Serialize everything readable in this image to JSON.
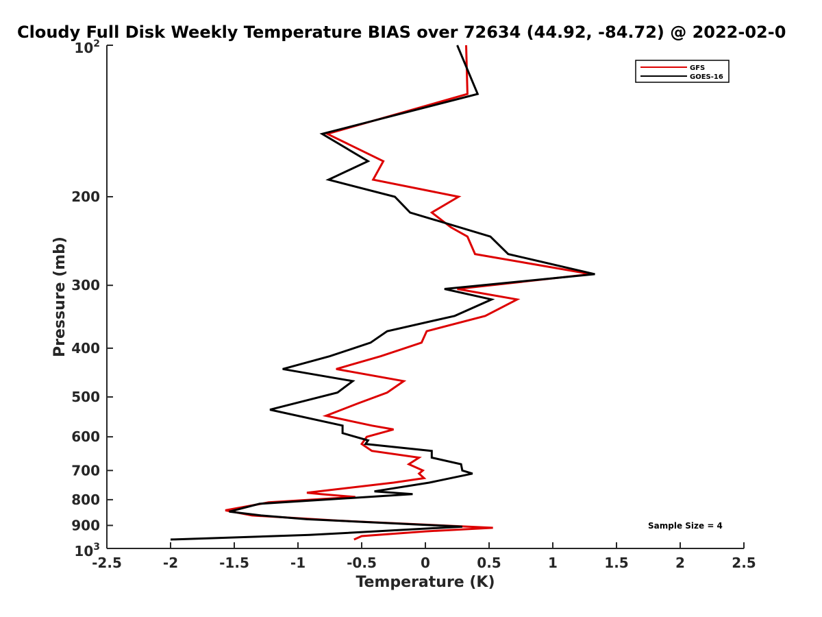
{
  "chart_data": {
    "type": "line",
    "title": "Cloudy Full Disk Weekly Temperature BIAS over 72634 (44.92, -84.72) @ 2022-02-0",
    "xlabel": "Temperature (K)",
    "ylabel": "Pressure (mb)",
    "xlim": [
      -2.5,
      2.5
    ],
    "ylim": [
      100,
      1000
    ],
    "y_scale": "log",
    "y_reversed": true,
    "grid": false,
    "legend_position": "top-right",
    "x_ticks": [
      "-2.5",
      "-2",
      "-1.5",
      "-1",
      "-0.5",
      "0",
      "0.5",
      "1",
      "1.5",
      "2",
      "2.5"
    ],
    "x_tick_values": [
      -2.5,
      -2,
      -1.5,
      -1,
      -0.5,
      0,
      0.5,
      1,
      1.5,
      2,
      2.5
    ],
    "y_ticks": [
      {
        "value": 100,
        "base": "10",
        "exp": "2"
      },
      {
        "value": 200,
        "label": "200"
      },
      {
        "value": 300,
        "label": "300"
      },
      {
        "value": 400,
        "label": "400"
      },
      {
        "value": 500,
        "label": "500"
      },
      {
        "value": 600,
        "label": "600"
      },
      {
        "value": 700,
        "label": "700"
      },
      {
        "value": 800,
        "label": "800"
      },
      {
        "value": 900,
        "label": "900"
      },
      {
        "value": 1000,
        "base": "10",
        "exp": "3"
      }
    ],
    "series": [
      {
        "name": "GFS",
        "color": "#dd0000",
        "points": [
          [
            0.32,
            100
          ],
          [
            0.33,
            125
          ],
          [
            -0.77,
            150
          ],
          [
            -0.33,
            170
          ],
          [
            -0.41,
            185
          ],
          [
            0.26,
            200
          ],
          [
            0.05,
            215
          ],
          [
            0.2,
            230
          ],
          [
            0.33,
            240
          ],
          [
            0.39,
            260
          ],
          [
            1.3,
            285
          ],
          [
            0.25,
            305
          ],
          [
            0.72,
            320
          ],
          [
            0.47,
            345
          ],
          [
            0.01,
            370
          ],
          [
            -0.03,
            390
          ],
          [
            -0.35,
            415
          ],
          [
            -0.7,
            440
          ],
          [
            -0.17,
            465
          ],
          [
            -0.3,
            490
          ],
          [
            -0.53,
            515
          ],
          [
            -0.78,
            545
          ],
          [
            -0.42,
            570
          ],
          [
            -0.25,
            580
          ],
          [
            -0.46,
            600
          ],
          [
            -0.5,
            620
          ],
          [
            -0.42,
            640
          ],
          [
            -0.05,
            660
          ],
          [
            -0.13,
            680
          ],
          [
            -0.02,
            700
          ],
          [
            -0.05,
            710
          ],
          [
            -0.01,
            725
          ],
          [
            -0.25,
            740
          ],
          [
            -0.93,
            775
          ],
          [
            -0.82,
            780
          ],
          [
            -0.55,
            790
          ],
          [
            -1.23,
            810
          ],
          [
            -1.57,
            840
          ],
          [
            -1.36,
            860
          ],
          [
            -0.7,
            880
          ],
          [
            0.53,
            910
          ],
          [
            0.0,
            925
          ],
          [
            -0.5,
            945
          ],
          [
            -0.56,
            960
          ]
        ]
      },
      {
        "name": "GOES-16",
        "color": "#000000",
        "points": [
          [
            0.25,
            100
          ],
          [
            0.41,
            125
          ],
          [
            -0.81,
            150
          ],
          [
            -0.45,
            170
          ],
          [
            -0.76,
            185
          ],
          [
            -0.24,
            200
          ],
          [
            -0.12,
            215
          ],
          [
            0.51,
            240
          ],
          [
            0.65,
            260
          ],
          [
            1.33,
            285
          ],
          [
            0.15,
            305
          ],
          [
            0.52,
            320
          ],
          [
            0.23,
            345
          ],
          [
            -0.3,
            370
          ],
          [
            -0.43,
            390
          ],
          [
            -0.75,
            415
          ],
          [
            -1.12,
            440
          ],
          [
            -0.57,
            465
          ],
          [
            -0.69,
            490
          ],
          [
            -1.22,
            530
          ],
          [
            -0.65,
            570
          ],
          [
            -0.65,
            590
          ],
          [
            -0.45,
            610
          ],
          [
            -0.47,
            620
          ],
          [
            0.05,
            640
          ],
          [
            0.05,
            660
          ],
          [
            0.28,
            680
          ],
          [
            0.29,
            700
          ],
          [
            0.37,
            710
          ],
          [
            0.03,
            740
          ],
          [
            -0.4,
            770
          ],
          [
            -0.1,
            780
          ],
          [
            -1.3,
            815
          ],
          [
            -1.54,
            845
          ],
          [
            -1.29,
            860
          ],
          [
            -0.93,
            875
          ],
          [
            0.29,
            905
          ],
          [
            -0.91,
            940
          ],
          [
            -2.0,
            960
          ]
        ]
      }
    ],
    "annotations": [
      "Sample Size = 4"
    ]
  }
}
